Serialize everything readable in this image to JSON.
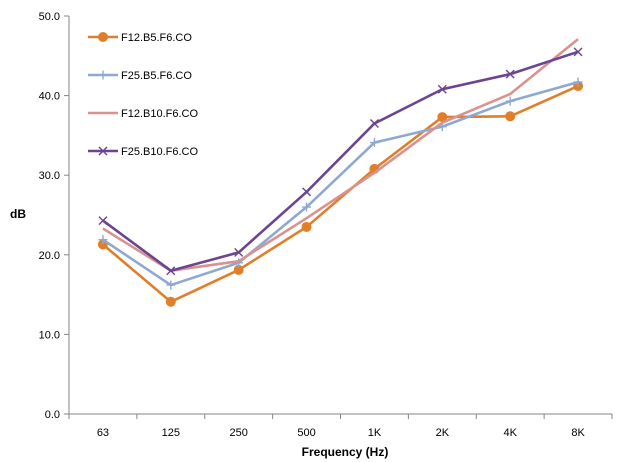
{
  "chart_data": {
    "type": "line",
    "title": "",
    "xlabel": "Frequency (Hz)",
    "ylabel": "dB",
    "categories": [
      "63",
      "125",
      "250",
      "500",
      "1K",
      "2K",
      "4K",
      "8K"
    ],
    "ylim": [
      0,
      50
    ],
    "yticks": [
      "0.0",
      "10.0",
      "20.0",
      "30.0",
      "40.0",
      "50.0"
    ],
    "grid": false,
    "legend_position": "top-left",
    "series": [
      {
        "name": "F12.B5.F6.CO",
        "color": "#E07F2B",
        "marker": "circle",
        "values": [
          21.3,
          14.1,
          18.1,
          23.5,
          30.8,
          37.3,
          37.4,
          41.2
        ]
      },
      {
        "name": "F25.B5.F6.CO",
        "color": "#8EA9D1",
        "marker": "plus",
        "values": [
          21.9,
          16.2,
          19.0,
          26.0,
          34.1,
          36.1,
          39.3,
          41.7
        ]
      },
      {
        "name": "F12.B10.F6.CO",
        "color": "#D9928E",
        "marker": "none",
        "values": [
          23.3,
          18.0,
          19.2,
          24.6,
          30.3,
          36.6,
          40.2,
          47.1
        ]
      },
      {
        "name": "F25.B10.F6.CO",
        "color": "#6B4592",
        "marker": "x",
        "values": [
          24.3,
          18.0,
          20.3,
          27.9,
          36.5,
          40.8,
          42.7,
          45.5
        ]
      }
    ]
  }
}
